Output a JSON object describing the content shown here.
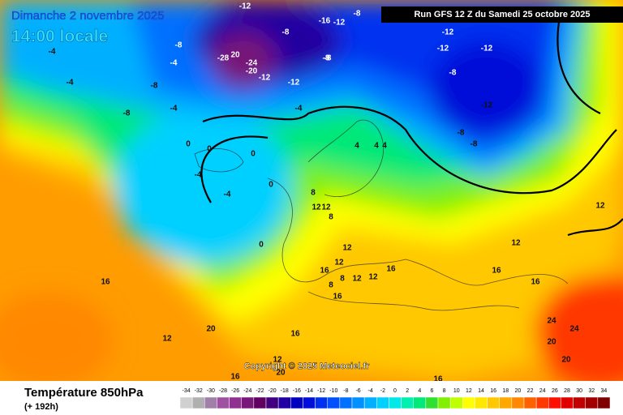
{
  "header": {
    "date": "Dimanche 2 novembre 2025",
    "time": "14:00 locale",
    "run": "Run GFS 12 Z du Samedi 25 octobre 2025"
  },
  "copyright": "Copyright © 2025 Meteociel.fr",
  "footer": {
    "title": "Température 850hPa",
    "lead": "(+ 192h)"
  },
  "legend": {
    "values": [
      -34,
      -32,
      -30,
      -28,
      -26,
      -24,
      -22,
      -20,
      -18,
      -16,
      -14,
      -12,
      -10,
      -8,
      -6,
      -4,
      -2,
      0,
      2,
      4,
      6,
      8,
      10,
      12,
      14,
      16,
      18,
      20,
      22,
      24,
      26,
      28,
      30,
      32,
      34
    ],
    "colors": [
      "#d0d0d0",
      "#b0b0b0",
      "#a080a8",
      "#a050a0",
      "#903090",
      "#781878",
      "#600060",
      "#400080",
      "#2000a0",
      "#0000c0",
      "#0010d8",
      "#0030f0",
      "#0050ff",
      "#0070ff",
      "#0090ff",
      "#00b0ff",
      "#00d0ff",
      "#00e8e8",
      "#00f0b0",
      "#00e878",
      "#30e030",
      "#80f000",
      "#c0ff00",
      "#ffff00",
      "#ffe800",
      "#ffc800",
      "#ffa800",
      "#ff8800",
      "#ff6000",
      "#ff3800",
      "#ff1000",
      "#e00000",
      "#c00000",
      "#a00000",
      "#800000"
    ]
  },
  "contour_labels": [
    "-12",
    "-16",
    "-12",
    "-8",
    "-8",
    "-8",
    "20",
    "-28",
    "-24",
    "-20",
    "-12",
    "-8",
    "-12",
    "-8",
    "-4",
    "-8",
    "-12",
    "-12",
    "-12",
    "-8",
    "-12",
    "-8",
    "-8",
    "-4",
    "-4",
    "-4",
    "-8",
    "-4",
    "0",
    "0",
    "0",
    "-4",
    "-4",
    "0",
    "0",
    "4",
    "4",
    "4",
    "8",
    "12",
    "12",
    "8",
    "12",
    "16",
    "12",
    "8",
    "16",
    "12",
    "8",
    "12",
    "16",
    "16",
    "12",
    "16",
    "16",
    "12",
    "20",
    "20",
    "24",
    "24",
    "20",
    "16",
    "20",
    "16",
    "12",
    "12",
    "16"
  ]
}
